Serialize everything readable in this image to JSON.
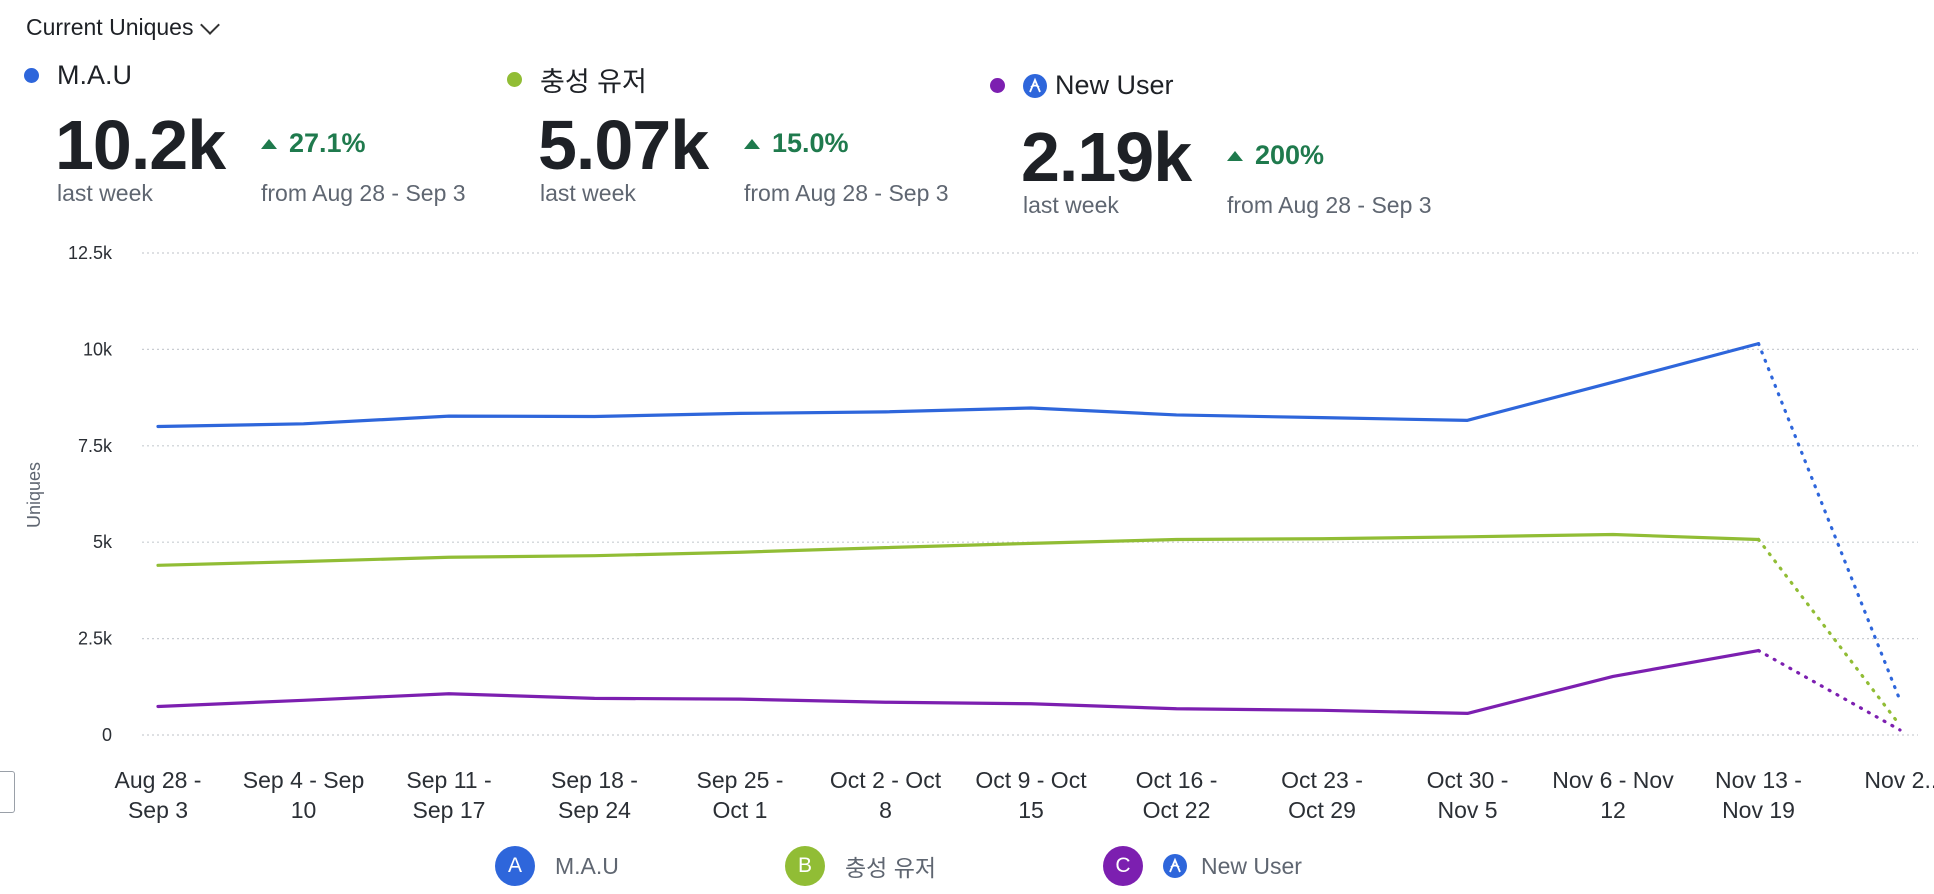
{
  "header": {
    "title": "Current Uniques"
  },
  "metrics": [
    {
      "name": "M.A.U",
      "value": "10.2k",
      "period": "last week",
      "change": "27.1%",
      "compare": "from Aug 28 - Sep 3",
      "color": "#2e66db",
      "icon": ""
    },
    {
      "name": "충성 유저",
      "value": "5.07k",
      "period": "last week",
      "change": "15.0%",
      "compare": "from Aug 28 - Sep 3",
      "color": "#91bd35",
      "icon": ""
    },
    {
      "name": "New User",
      "value": "2.19k",
      "period": "last week",
      "change": "200%",
      "compare": "from Aug 28 - Sep 3",
      "color": "#7c1fb0",
      "icon": "segment-a-icon"
    }
  ],
  "legend": [
    {
      "letter": "A",
      "name": "M.A.U",
      "color": "#2e66db"
    },
    {
      "letter": "B",
      "name": "충성 유저",
      "color": "#91bd35"
    },
    {
      "letter": "C",
      "name": "New User",
      "color": "#7c1fb0",
      "icon": "segment-a-icon"
    }
  ],
  "chart_data": {
    "type": "line",
    "ylabel": "Uniques",
    "xlabel": "",
    "ylim": [
      0,
      12500
    ],
    "yticks": [
      0,
      2500,
      5000,
      7500,
      10000,
      12500
    ],
    "ytick_labels": [
      "0",
      "2.5k",
      "5k",
      "7.5k",
      "10k",
      "12.5k"
    ],
    "grid": true,
    "categories": [
      [
        "Aug 28 -",
        "Sep 3"
      ],
      [
        "Sep 4 - Sep",
        "10"
      ],
      [
        "Sep 11 -",
        "Sep 17"
      ],
      [
        "Sep 18 -",
        "Sep 24"
      ],
      [
        "Sep 25 -",
        "Oct 1"
      ],
      [
        "Oct 2 - Oct",
        "8"
      ],
      [
        "Oct 9 - Oct",
        "15"
      ],
      [
        "Oct 16 -",
        "Oct 22"
      ],
      [
        "Oct 23 -",
        "Oct 29"
      ],
      [
        "Oct 30 -",
        "Nov 5"
      ],
      [
        "Nov 6 - Nov",
        "12"
      ],
      [
        "Nov 13 -",
        "Nov 19"
      ],
      [
        "Nov 2..."
      ]
    ],
    "incomplete_last_point": true,
    "series": [
      {
        "name": "M.A.U",
        "color": "#2e66db",
        "values": [
          8000,
          8070,
          8270,
          8260,
          8340,
          8380,
          8480,
          8300,
          8230,
          8160,
          9150,
          10150,
          900
        ]
      },
      {
        "name": "충성 유저",
        "color": "#91bd35",
        "values": [
          4400,
          4500,
          4610,
          4650,
          4740,
          4860,
          4970,
          5070,
          5090,
          5140,
          5200,
          5070,
          250
        ]
      },
      {
        "name": "New User",
        "color": "#7c1fb0",
        "values": [
          740,
          900,
          1070,
          950,
          930,
          850,
          810,
          680,
          640,
          560,
          1520,
          2190,
          130
        ]
      }
    ]
  }
}
